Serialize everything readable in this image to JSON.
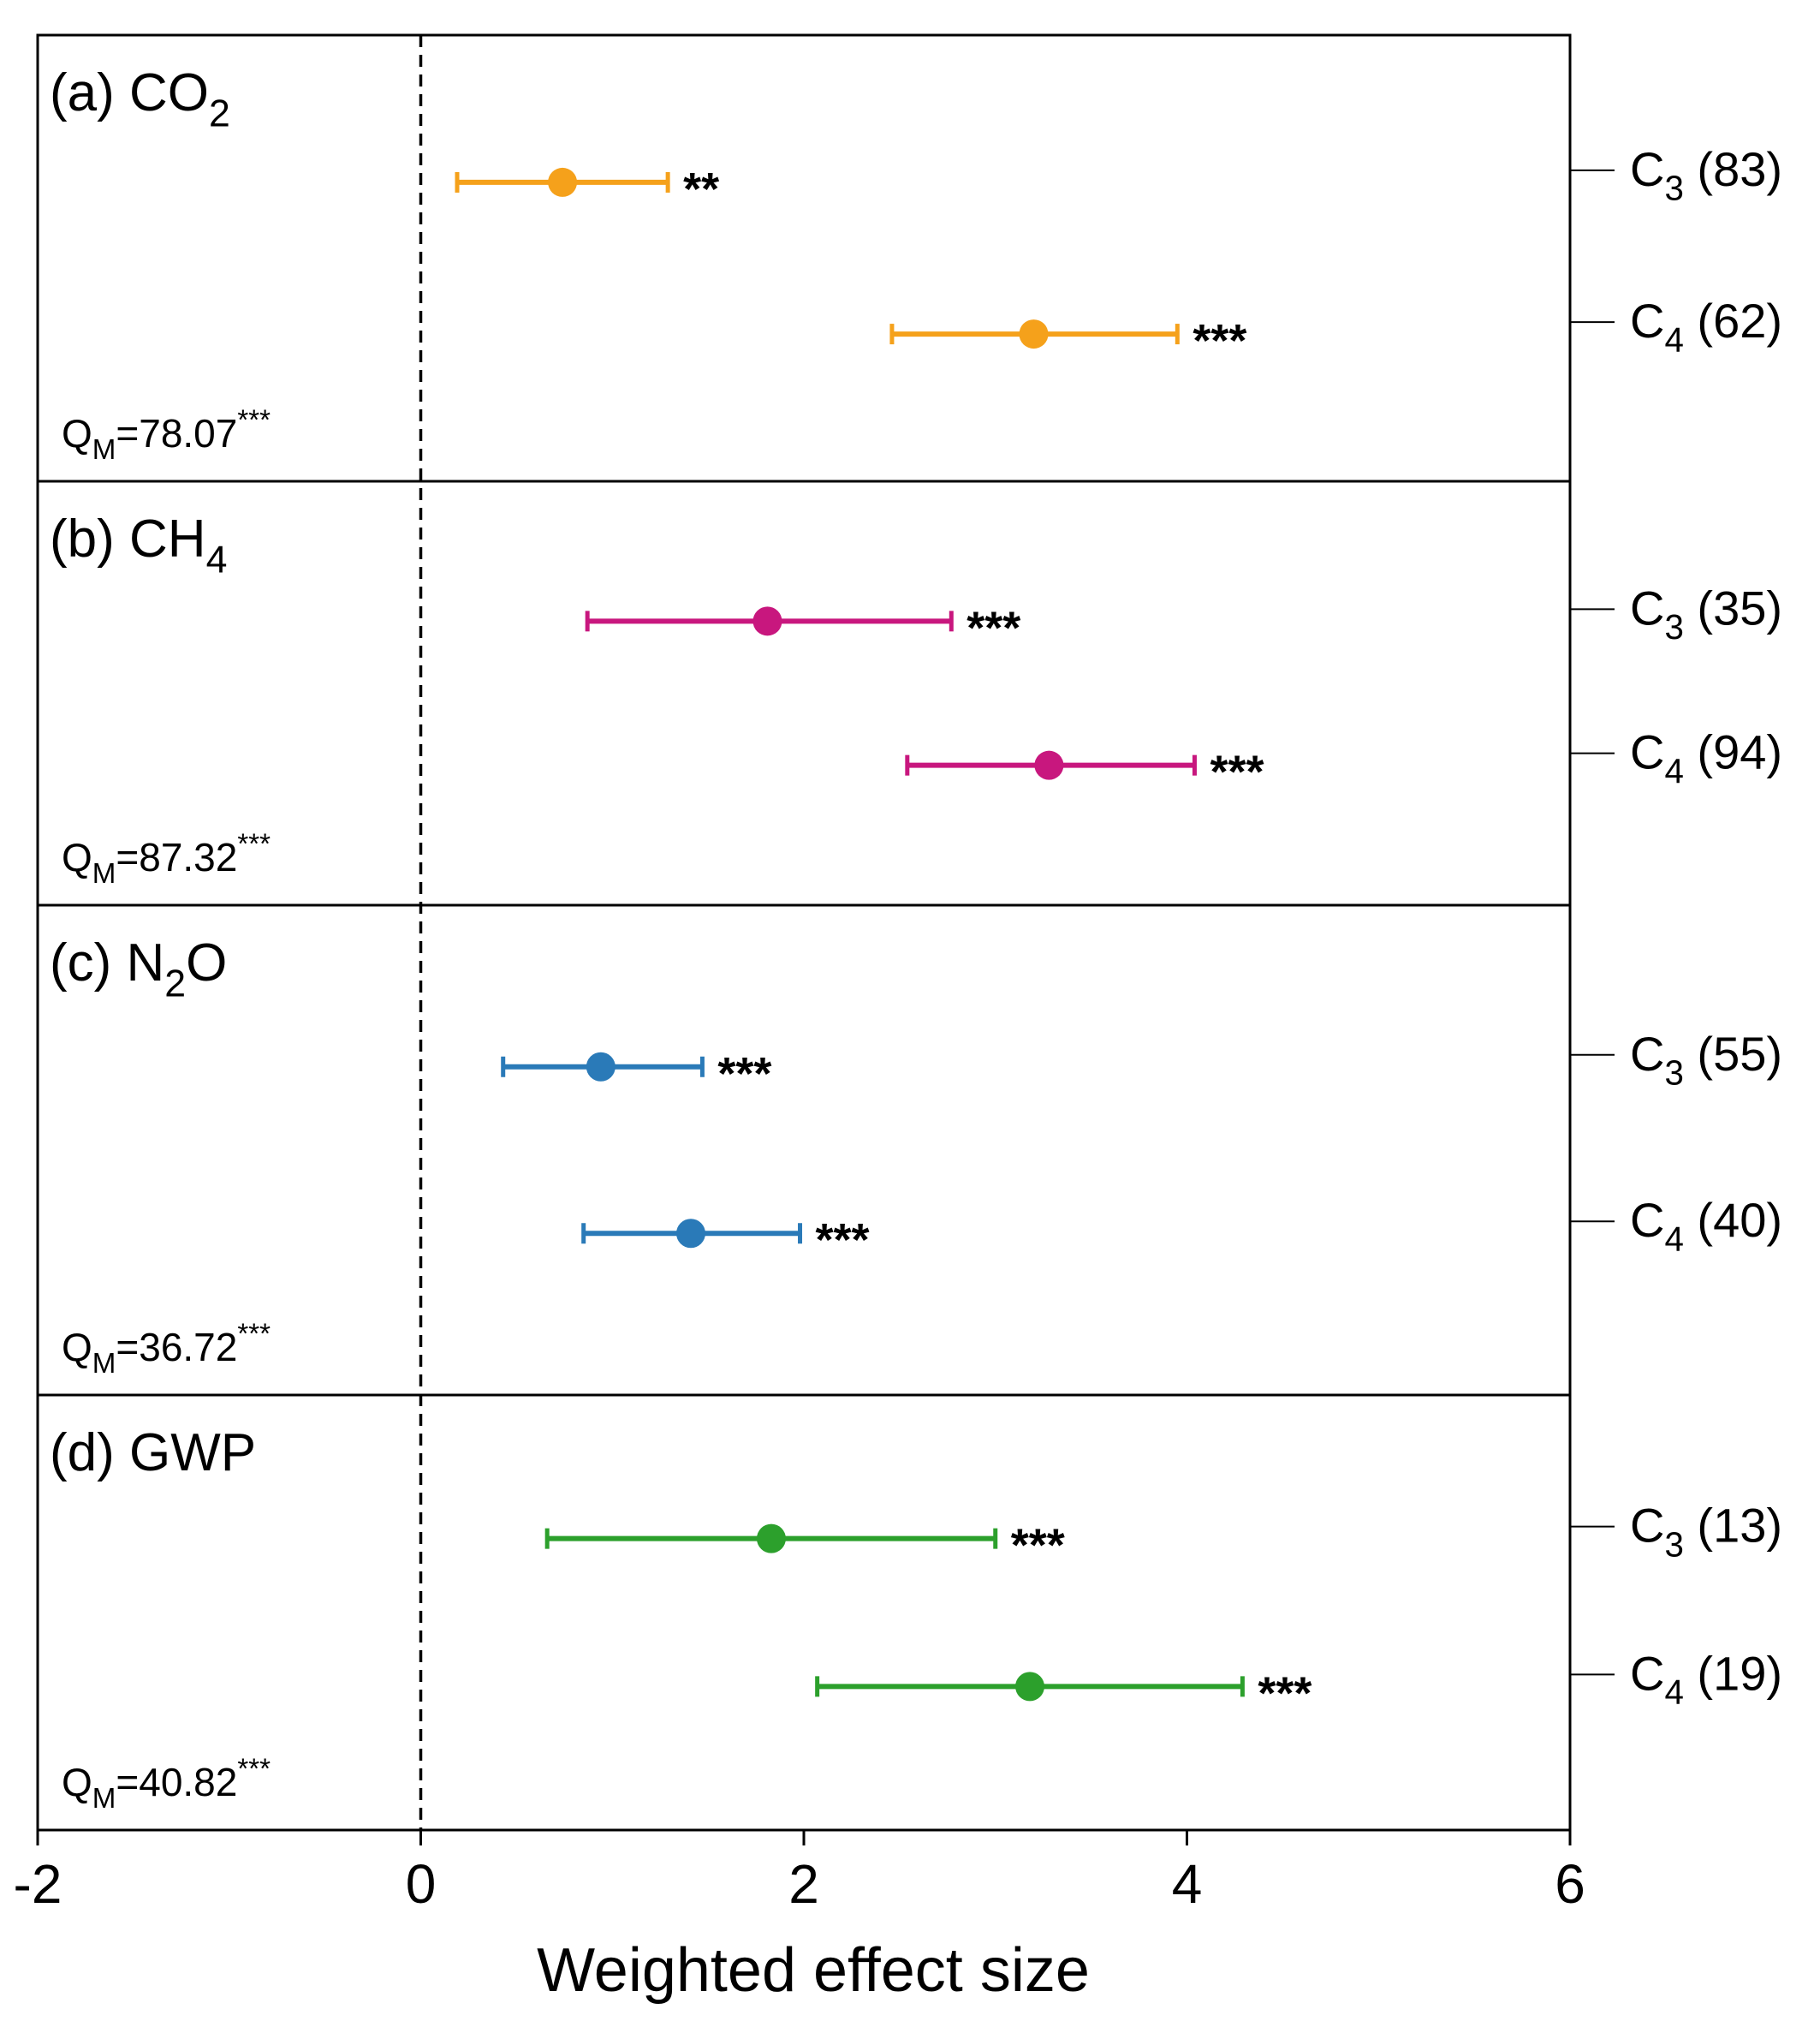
{
  "chart_data": {
    "type": "forest",
    "xlabel": "Weighted effect size",
    "xlim": [
      -2,
      6
    ],
    "xticks": [
      -2,
      0,
      2,
      4,
      6
    ],
    "reference_x": 0,
    "panels": [
      {
        "title": [
          {
            "text": "(a) CO"
          },
          {
            "text": "2",
            "shift": "sub"
          }
        ],
        "color": "#f5a11b",
        "categories": [
          [
            {
              "text": "C"
            },
            {
              "text": "3",
              "shift": "sub"
            },
            {
              "text": " (83)"
            }
          ],
          [
            {
              "text": "C"
            },
            {
              "text": "4",
              "shift": "sub"
            },
            {
              "text": " (62)"
            }
          ]
        ],
        "values": [
          0.74,
          3.2
        ],
        "lower": [
          0.19,
          2.46
        ],
        "upper": [
          1.29,
          3.95
        ],
        "annotations": [
          "**",
          "***"
        ],
        "qm": [
          {
            "text": "Q"
          },
          {
            "text": "M",
            "shift": "sub"
          },
          {
            "text": "=78.07"
          },
          {
            "text": "***",
            "shift": "sup"
          }
        ]
      },
      {
        "title": [
          {
            "text": "(b) CH"
          },
          {
            "text": "4",
            "shift": "sub"
          }
        ],
        "color": "#c8177e",
        "categories": [
          [
            {
              "text": "C"
            },
            {
              "text": "3",
              "shift": "sub"
            },
            {
              "text": " (35)"
            }
          ],
          [
            {
              "text": "C"
            },
            {
              "text": "4",
              "shift": "sub"
            },
            {
              "text": " (94)"
            }
          ]
        ],
        "values": [
          1.81,
          3.28
        ],
        "lower": [
          0.87,
          2.54
        ],
        "upper": [
          2.77,
          4.04
        ],
        "annotations": [
          "***",
          "***"
        ],
        "qm": [
          {
            "text": "Q"
          },
          {
            "text": "M",
            "shift": "sub"
          },
          {
            "text": "=87.32"
          },
          {
            "text": "***",
            "shift": "sup"
          }
        ]
      },
      {
        "title": [
          {
            "text": "(c) N"
          },
          {
            "text": "2",
            "shift": "sub"
          },
          {
            "text": "O"
          }
        ],
        "color": "#2a7ab8",
        "categories": [
          [
            {
              "text": "C"
            },
            {
              "text": "3",
              "shift": "sub"
            },
            {
              "text": " (55)"
            }
          ],
          [
            {
              "text": "C"
            },
            {
              "text": "4",
              "shift": "sub"
            },
            {
              "text": " (40)"
            }
          ]
        ],
        "values": [
          0.94,
          1.41
        ],
        "lower": [
          0.43,
          0.85
        ],
        "upper": [
          1.47,
          1.98
        ],
        "annotations": [
          "***",
          "***"
        ],
        "qm": [
          {
            "text": "Q"
          },
          {
            "text": "M",
            "shift": "sub"
          },
          {
            "text": "=36.72"
          },
          {
            "text": "***",
            "shift": "sup"
          }
        ]
      },
      {
        "title": [
          {
            "text": "(d) GWP"
          }
        ],
        "color": "#2ca02c",
        "categories": [
          [
            {
              "text": "C"
            },
            {
              "text": "3",
              "shift": "sub"
            },
            {
              "text": " (13)"
            }
          ],
          [
            {
              "text": "C"
            },
            {
              "text": "4",
              "shift": "sub"
            },
            {
              "text": " (19)"
            }
          ]
        ],
        "values": [
          1.83,
          3.18
        ],
        "lower": [
          0.66,
          2.07
        ],
        "upper": [
          3.0,
          4.29
        ],
        "annotations": [
          "***",
          "***"
        ],
        "qm": [
          {
            "text": "Q"
          },
          {
            "text": "M",
            "shift": "sub"
          },
          {
            "text": "=40.82"
          },
          {
            "text": "***",
            "shift": "sup"
          }
        ]
      }
    ]
  }
}
